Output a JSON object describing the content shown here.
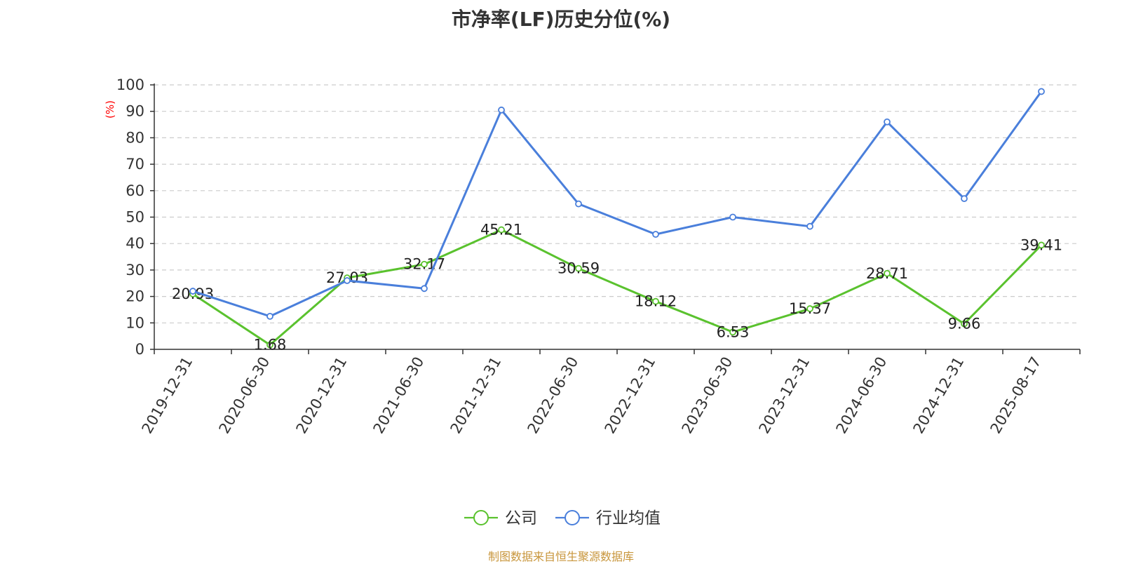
{
  "chart_data": {
    "type": "line",
    "title": "市净率(LF)历史分位(%)",
    "ylabel": "(%)",
    "ylim": [
      0,
      100
    ],
    "yticks": [
      0,
      10,
      20,
      30,
      40,
      50,
      60,
      70,
      80,
      90,
      100
    ],
    "grid": true,
    "legend_position": "bottom-center",
    "categories": [
      "2019-12-31",
      "2020-06-30",
      "2020-12-31",
      "2021-06-30",
      "2021-12-31",
      "2022-06-30",
      "2022-12-31",
      "2023-06-30",
      "2023-12-31",
      "2024-06-30",
      "2024-12-31",
      "2025-08-17"
    ],
    "series": [
      {
        "name": "公司",
        "color": "#5ac22e",
        "values": [
          20.93,
          1.68,
          27.03,
          32.17,
          45.21,
          30.59,
          18.12,
          6.53,
          15.37,
          28.71,
          9.66,
          39.41
        ],
        "labels": [
          "20.93",
          "1.68",
          "27.03",
          "32.17",
          "45.21",
          "30.59",
          "18.12",
          "6.53",
          "15.37",
          "28.71",
          "9.66",
          "39.41"
        ]
      },
      {
        "name": "行业均值",
        "color": "#4a7fdb",
        "values": [
          22.0,
          12.5,
          26.0,
          23.0,
          90.5,
          55.0,
          43.5,
          50.0,
          46.5,
          86.0,
          57.0,
          97.5
        ]
      }
    ]
  },
  "source": "制图数据来自恒生聚源数据库"
}
